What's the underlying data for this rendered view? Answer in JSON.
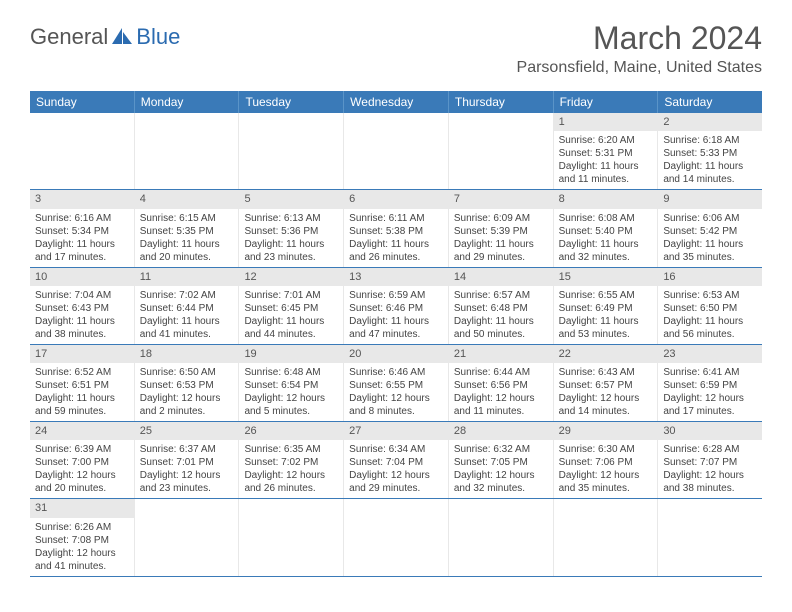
{
  "logo": {
    "general": "General",
    "blue": "Blue"
  },
  "title": "March 2024",
  "location": "Parsonsfield, Maine, United States",
  "colors": {
    "header_bg": "#3a7ab8",
    "week_border": "#3a7ab8",
    "dow_text": "#ffffff",
    "daynum_bg": "#e8e8e8",
    "body_text": "#444444"
  },
  "dow": [
    "Sunday",
    "Monday",
    "Tuesday",
    "Wednesday",
    "Thursday",
    "Friday",
    "Saturday"
  ],
  "weeks": [
    [
      null,
      null,
      null,
      null,
      null,
      {
        "n": "1",
        "sr": "6:20 AM",
        "ss": "5:31 PM",
        "dl": "11 hours and 11 minutes."
      },
      {
        "n": "2",
        "sr": "6:18 AM",
        "ss": "5:33 PM",
        "dl": "11 hours and 14 minutes."
      }
    ],
    [
      {
        "n": "3",
        "sr": "6:16 AM",
        "ss": "5:34 PM",
        "dl": "11 hours and 17 minutes."
      },
      {
        "n": "4",
        "sr": "6:15 AM",
        "ss": "5:35 PM",
        "dl": "11 hours and 20 minutes."
      },
      {
        "n": "5",
        "sr": "6:13 AM",
        "ss": "5:36 PM",
        "dl": "11 hours and 23 minutes."
      },
      {
        "n": "6",
        "sr": "6:11 AM",
        "ss": "5:38 PM",
        "dl": "11 hours and 26 minutes."
      },
      {
        "n": "7",
        "sr": "6:09 AM",
        "ss": "5:39 PM",
        "dl": "11 hours and 29 minutes."
      },
      {
        "n": "8",
        "sr": "6:08 AM",
        "ss": "5:40 PM",
        "dl": "11 hours and 32 minutes."
      },
      {
        "n": "9",
        "sr": "6:06 AM",
        "ss": "5:42 PM",
        "dl": "11 hours and 35 minutes."
      }
    ],
    [
      {
        "n": "10",
        "sr": "7:04 AM",
        "ss": "6:43 PM",
        "dl": "11 hours and 38 minutes."
      },
      {
        "n": "11",
        "sr": "7:02 AM",
        "ss": "6:44 PM",
        "dl": "11 hours and 41 minutes."
      },
      {
        "n": "12",
        "sr": "7:01 AM",
        "ss": "6:45 PM",
        "dl": "11 hours and 44 minutes."
      },
      {
        "n": "13",
        "sr": "6:59 AM",
        "ss": "6:46 PM",
        "dl": "11 hours and 47 minutes."
      },
      {
        "n": "14",
        "sr": "6:57 AM",
        "ss": "6:48 PM",
        "dl": "11 hours and 50 minutes."
      },
      {
        "n": "15",
        "sr": "6:55 AM",
        "ss": "6:49 PM",
        "dl": "11 hours and 53 minutes."
      },
      {
        "n": "16",
        "sr": "6:53 AM",
        "ss": "6:50 PM",
        "dl": "11 hours and 56 minutes."
      }
    ],
    [
      {
        "n": "17",
        "sr": "6:52 AM",
        "ss": "6:51 PM",
        "dl": "11 hours and 59 minutes."
      },
      {
        "n": "18",
        "sr": "6:50 AM",
        "ss": "6:53 PM",
        "dl": "12 hours and 2 minutes."
      },
      {
        "n": "19",
        "sr": "6:48 AM",
        "ss": "6:54 PM",
        "dl": "12 hours and 5 minutes."
      },
      {
        "n": "20",
        "sr": "6:46 AM",
        "ss": "6:55 PM",
        "dl": "12 hours and 8 minutes."
      },
      {
        "n": "21",
        "sr": "6:44 AM",
        "ss": "6:56 PM",
        "dl": "12 hours and 11 minutes."
      },
      {
        "n": "22",
        "sr": "6:43 AM",
        "ss": "6:57 PM",
        "dl": "12 hours and 14 minutes."
      },
      {
        "n": "23",
        "sr": "6:41 AM",
        "ss": "6:59 PM",
        "dl": "12 hours and 17 minutes."
      }
    ],
    [
      {
        "n": "24",
        "sr": "6:39 AM",
        "ss": "7:00 PM",
        "dl": "12 hours and 20 minutes."
      },
      {
        "n": "25",
        "sr": "6:37 AM",
        "ss": "7:01 PM",
        "dl": "12 hours and 23 minutes."
      },
      {
        "n": "26",
        "sr": "6:35 AM",
        "ss": "7:02 PM",
        "dl": "12 hours and 26 minutes."
      },
      {
        "n": "27",
        "sr": "6:34 AM",
        "ss": "7:04 PM",
        "dl": "12 hours and 29 minutes."
      },
      {
        "n": "28",
        "sr": "6:32 AM",
        "ss": "7:05 PM",
        "dl": "12 hours and 32 minutes."
      },
      {
        "n": "29",
        "sr": "6:30 AM",
        "ss": "7:06 PM",
        "dl": "12 hours and 35 minutes."
      },
      {
        "n": "30",
        "sr": "6:28 AM",
        "ss": "7:07 PM",
        "dl": "12 hours and 38 minutes."
      }
    ],
    [
      {
        "n": "31",
        "sr": "6:26 AM",
        "ss": "7:08 PM",
        "dl": "12 hours and 41 minutes."
      },
      null,
      null,
      null,
      null,
      null,
      null
    ]
  ],
  "labels": {
    "sunrise": "Sunrise:",
    "sunset": "Sunset:",
    "daylight": "Daylight:"
  }
}
